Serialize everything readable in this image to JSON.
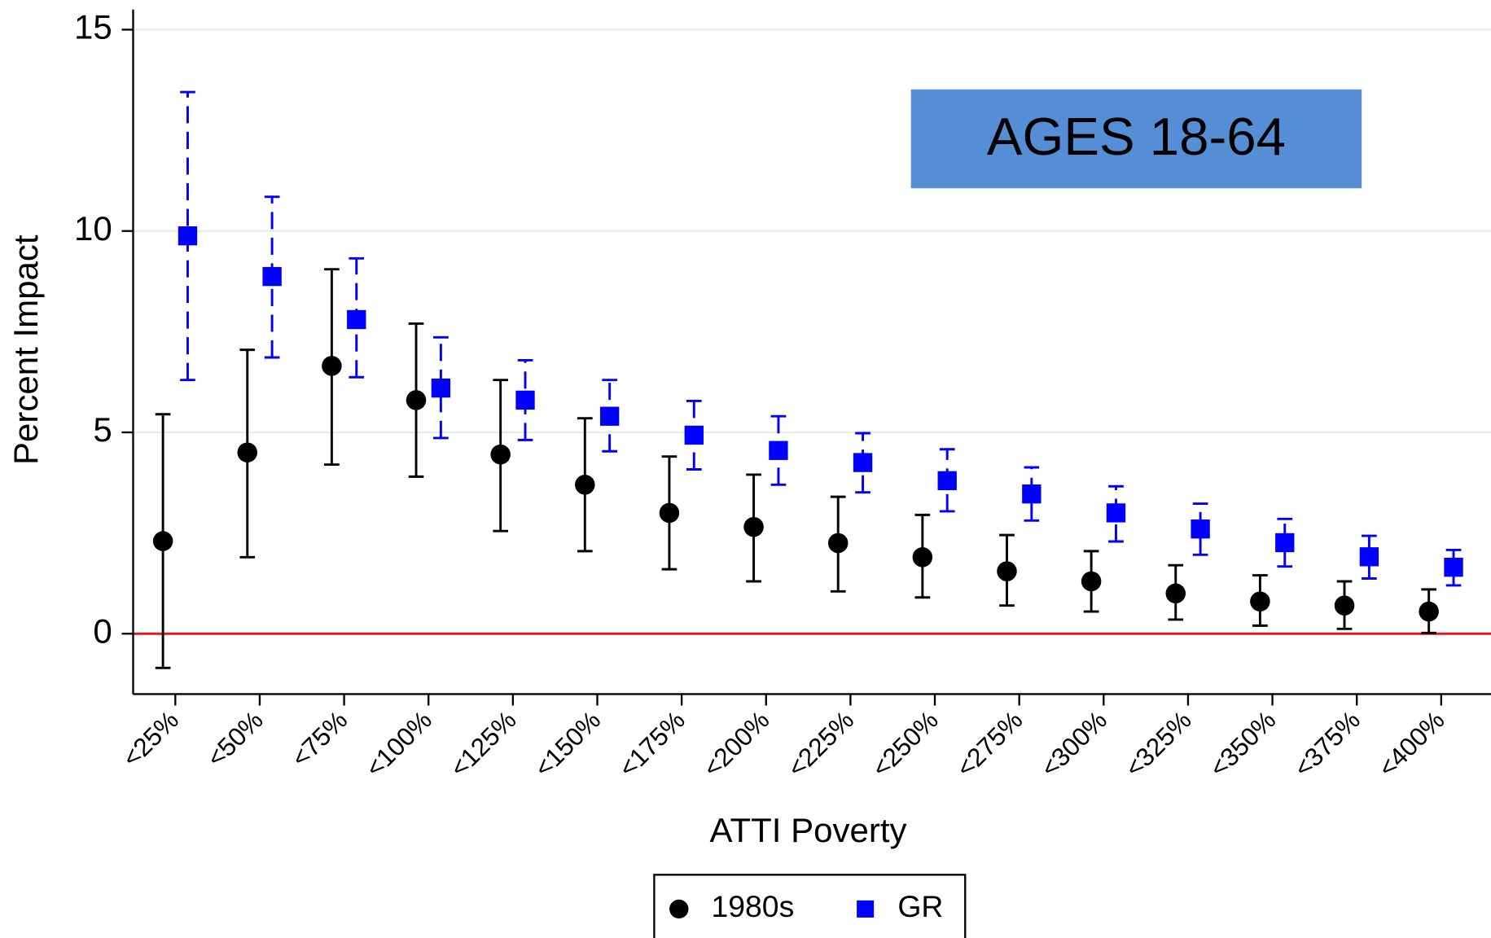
{
  "chart_data": {
    "type": "errorbar",
    "annotation": "AGES 18-64",
    "xlabel": "ATTI Poverty",
    "ylabel": "Percent Impact",
    "categories": [
      "<25%",
      "<50%",
      "<75%",
      "<100%",
      "<125%",
      "<150%",
      "<175%",
      "<200%",
      "<225%",
      "<250%",
      "<275%",
      "<300%",
      "<325%",
      "<350%",
      "<375%",
      "<400%"
    ],
    "series": [
      {
        "name": "1980s",
        "color": "#000000",
        "marker": "circle",
        "dashed": false,
        "values": [
          2.3,
          4.5,
          6.65,
          5.8,
          4.45,
          3.7,
          3.0,
          2.65,
          2.25,
          1.9,
          1.55,
          1.3,
          1.0,
          0.8,
          0.7,
          0.55
        ],
        "lower": [
          -0.85,
          1.9,
          4.2,
          3.9,
          2.55,
          2.05,
          1.6,
          1.3,
          1.05,
          0.9,
          0.7,
          0.55,
          0.35,
          0.2,
          0.12,
          0.02
        ],
        "upper": [
          5.45,
          7.05,
          9.05,
          7.7,
          6.3,
          5.35,
          4.4,
          3.95,
          3.4,
          2.95,
          2.45,
          2.05,
          1.7,
          1.45,
          1.3,
          1.1
        ]
      },
      {
        "name": "GR",
        "color": "#0000ff",
        "marker": "square",
        "dashed": true,
        "values": [
          9.88,
          8.87,
          7.8,
          6.1,
          5.8,
          5.4,
          4.93,
          4.55,
          4.25,
          3.8,
          3.47,
          3.0,
          2.6,
          2.26,
          1.91,
          1.65
        ],
        "lower": [
          6.3,
          6.86,
          6.37,
          4.86,
          4.81,
          4.53,
          4.08,
          3.7,
          3.51,
          3.04,
          2.81,
          2.29,
          1.96,
          1.67,
          1.37,
          1.2
        ],
        "upper": [
          13.45,
          10.85,
          9.32,
          7.36,
          6.79,
          6.3,
          5.78,
          5.4,
          4.98,
          4.58,
          4.13,
          3.66,
          3.23,
          2.85,
          2.43,
          2.08
        ]
      }
    ],
    "ylim": [
      -1.5,
      15.5
    ],
    "yticks": [
      0,
      5,
      10,
      15
    ],
    "grid": true,
    "reference_line": {
      "value": 0,
      "color": "#e8141b"
    },
    "legend": "bottom"
  }
}
